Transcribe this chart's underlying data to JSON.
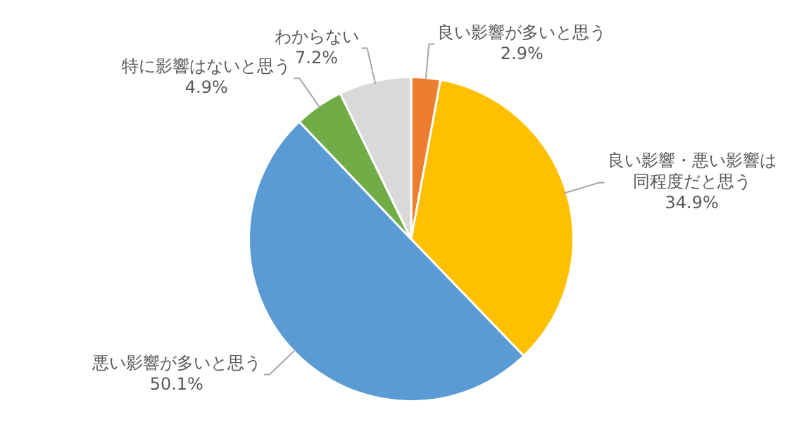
{
  "chart_data": {
    "type": "pie",
    "categories": [
      "良い影響が多いと思う",
      "良い影響・悪い影響は同程度だと思う",
      "悪い影響が多いと思う",
      "特に影響はないと思う",
      "わからない"
    ],
    "values": [
      2.9,
      34.9,
      50.1,
      4.9,
      7.2
    ],
    "colors": [
      "#ed7d31",
      "#ffc000",
      "#5b9bd5",
      "#70ad47",
      "#d9d9d9"
    ],
    "value_labels": [
      "2.9%",
      "34.9%",
      "50.1%",
      "4.9%",
      "7.2%"
    ],
    "legend": false
  }
}
